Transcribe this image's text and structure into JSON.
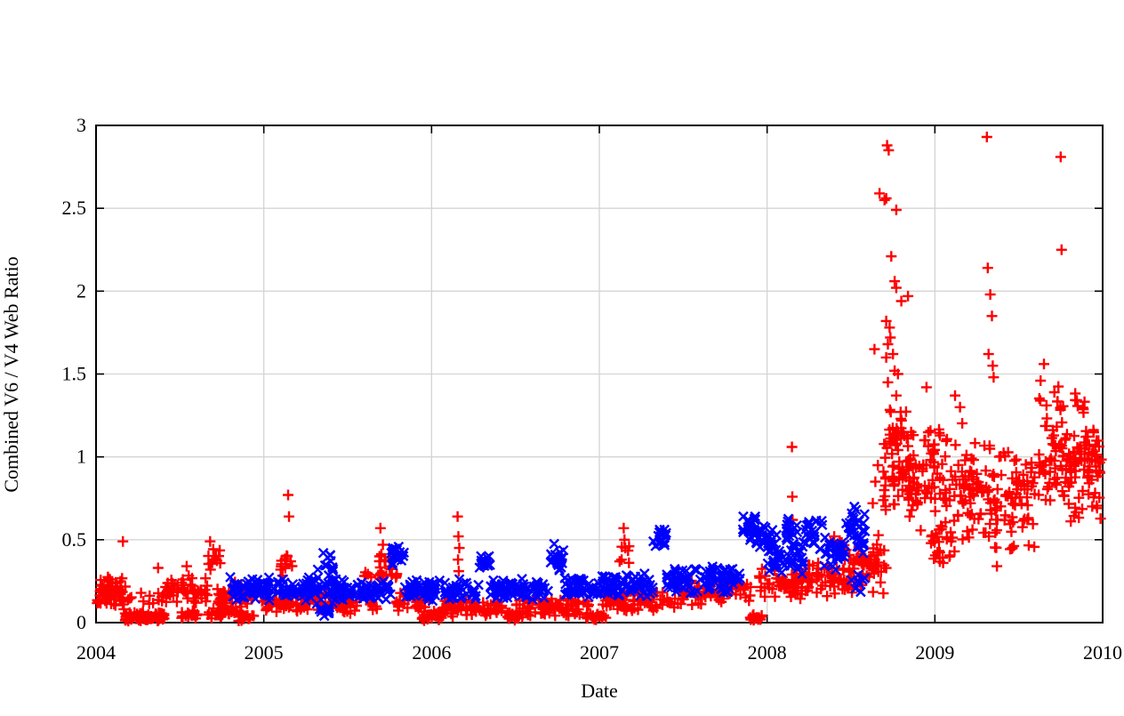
{
  "chart_data": {
    "type": "scatter",
    "title": "",
    "xlabel": "Date",
    "ylabel": "Combined V6 / V4 Web Ratio",
    "xlim": [
      2004,
      2010
    ],
    "ylim": [
      0,
      3
    ],
    "xticks": [
      2004,
      2005,
      2006,
      2007,
      2008,
      2009,
      2010
    ],
    "yticks": [
      0,
      0.5,
      1,
      1.5,
      2,
      2.5,
      3
    ],
    "grid": true,
    "legend": "none",
    "colors": {
      "red_series": "#ff0000",
      "blue_series": "#0000ff",
      "grid": "#d4d4d4",
      "axis": "#000000",
      "text": "#000000",
      "background": "#ffffff"
    },
    "_bands_note": "Dense daily scatter approximated as bands: [xStart, xEnd, count, yMin, yMax] in data units (year, ratio). 'points' are individually readable markers.",
    "series": [
      {
        "name": "red-plus",
        "marker": "plus",
        "color": "#ff0000",
        "bands": [
          [
            2004.005,
            2004.18,
            70,
            0.07,
            0.31
          ],
          [
            2004.17,
            2004.41,
            80,
            0.005,
            0.07
          ],
          [
            2004.18,
            2004.41,
            14,
            0.09,
            0.22
          ],
          [
            2004.41,
            2004.67,
            55,
            0.1,
            0.29
          ],
          [
            2004.49,
            2004.61,
            20,
            0.01,
            0.08
          ],
          [
            2004.66,
            2004.74,
            12,
            0.25,
            0.46
          ],
          [
            2004.66,
            2004.83,
            28,
            0.01,
            0.11
          ],
          [
            2004.72,
            2005.02,
            60,
            0.07,
            0.26
          ],
          [
            2004.84,
            2004.94,
            15,
            0.005,
            0.07
          ],
          [
            2005.0,
            2005.35,
            70,
            0.05,
            0.19
          ],
          [
            2005.1,
            2005.17,
            10,
            0.28,
            0.43
          ],
          [
            2005.35,
            2005.68,
            60,
            0.05,
            0.2
          ],
          [
            2005.6,
            2005.8,
            16,
            0.25,
            0.33
          ],
          [
            2005.68,
            2005.78,
            10,
            0.3,
            0.45
          ],
          [
            2005.78,
            2005.97,
            35,
            0.05,
            0.19
          ],
          [
            2005.94,
            2006.06,
            28,
            0.005,
            0.075
          ],
          [
            2006.05,
            2006.46,
            80,
            0.03,
            0.15
          ],
          [
            2006.44,
            2006.56,
            22,
            0.005,
            0.07
          ],
          [
            2006.5,
            2006.94,
            85,
            0.03,
            0.16
          ],
          [
            2006.92,
            2007.04,
            22,
            0.005,
            0.07
          ],
          [
            2007.02,
            2007.5,
            90,
            0.06,
            0.21
          ],
          [
            2007.12,
            2007.18,
            6,
            0.35,
            0.5
          ],
          [
            2007.5,
            2007.91,
            75,
            0.1,
            0.27
          ],
          [
            2007.89,
            2007.97,
            16,
            0.005,
            0.06
          ],
          [
            2007.95,
            2008.22,
            55,
            0.13,
            0.34
          ],
          [
            2008.2,
            2008.46,
            55,
            0.15,
            0.38
          ],
          [
            2008.36,
            2008.52,
            10,
            0.42,
            0.55
          ],
          [
            2008.45,
            2008.64,
            45,
            0.14,
            0.48
          ],
          [
            2008.6,
            2008.71,
            28,
            0.17,
            0.55
          ],
          [
            2008.69,
            2008.86,
            60,
            0.55,
            1.3
          ],
          [
            2008.72,
            2008.82,
            18,
            1.0,
            1.32
          ],
          [
            2008.84,
            2009.02,
            55,
            0.55,
            1.25
          ],
          [
            2008.97,
            2009.12,
            25,
            0.3,
            0.62
          ],
          [
            2009.02,
            2009.21,
            55,
            0.45,
            1.25
          ],
          [
            2009.2,
            2009.4,
            60,
            0.45,
            1.15
          ],
          [
            2009.4,
            2009.62,
            55,
            0.52,
            1.1
          ],
          [
            2009.35,
            2009.62,
            8,
            0.41,
            0.5
          ],
          [
            2009.62,
            2009.8,
            60,
            0.62,
            1.28
          ],
          [
            2009.62,
            2009.77,
            10,
            1.25,
            1.47
          ],
          [
            2009.8,
            2009.995,
            75,
            0.73,
            1.22
          ],
          [
            2009.8,
            2009.995,
            10,
            0.6,
            0.73
          ],
          [
            2009.83,
            2009.91,
            8,
            1.22,
            1.4
          ]
        ],
        "points": [
          [
            2004.16,
            0.49
          ],
          [
            2004.37,
            0.33
          ],
          [
            2004.54,
            0.34
          ],
          [
            2004.68,
            0.49
          ],
          [
            2005.145,
            0.77
          ],
          [
            2005.15,
            0.64
          ],
          [
            2005.14,
            0.4
          ],
          [
            2005.16,
            0.37
          ],
          [
            2005.695,
            0.57
          ],
          [
            2005.71,
            0.47
          ],
          [
            2006.155,
            0.64
          ],
          [
            2006.16,
            0.52
          ],
          [
            2006.165,
            0.45
          ],
          [
            2006.158,
            0.38
          ],
          [
            2006.162,
            0.31
          ],
          [
            2007.145,
            0.57
          ],
          [
            2007.15,
            0.5
          ],
          [
            2007.155,
            0.45
          ],
          [
            2008.148,
            1.06
          ],
          [
            2008.15,
            0.76
          ],
          [
            2008.152,
            0.62
          ],
          [
            2008.4,
            0.52
          ],
          [
            2008.44,
            0.48
          ],
          [
            2008.63,
            0.72
          ],
          [
            2008.645,
            0.85
          ],
          [
            2008.66,
            0.95
          ],
          [
            2008.64,
            1.65
          ],
          [
            2008.67,
            2.59
          ],
          [
            2008.7,
            2.55
          ],
          [
            2008.71,
            2.56
          ],
          [
            2008.715,
            2.88
          ],
          [
            2008.725,
            2.85
          ],
          [
            2008.77,
            2.49
          ],
          [
            2008.74,
            2.21
          ],
          [
            2008.76,
            2.06
          ],
          [
            2008.77,
            2.02
          ],
          [
            2008.8,
            1.94
          ],
          [
            2008.84,
            1.97
          ],
          [
            2008.71,
            1.82
          ],
          [
            2008.73,
            1.78
          ],
          [
            2008.735,
            1.72
          ],
          [
            2008.72,
            1.68
          ],
          [
            2008.75,
            1.62
          ],
          [
            2008.71,
            1.6
          ],
          [
            2008.76,
            1.52
          ],
          [
            2008.78,
            1.5
          ],
          [
            2008.72,
            1.45
          ],
          [
            2008.77,
            1.37
          ],
          [
            2008.95,
            1.42
          ],
          [
            2009.12,
            1.37
          ],
          [
            2009.15,
            1.3
          ],
          [
            2009.31,
            2.93
          ],
          [
            2009.315,
            2.14
          ],
          [
            2009.33,
            1.98
          ],
          [
            2009.34,
            1.85
          ],
          [
            2009.32,
            1.62
          ],
          [
            2009.345,
            1.55
          ],
          [
            2009.35,
            1.48
          ],
          [
            2009.37,
            0.34
          ],
          [
            2009.65,
            1.56
          ],
          [
            2009.63,
            1.46
          ],
          [
            2009.75,
            2.81
          ],
          [
            2009.755,
            2.25
          ]
        ]
      },
      {
        "name": "blue-cross",
        "marker": "cross",
        "color": "#0000ff",
        "bands": [
          [
            2004.8,
            2005.3,
            120,
            0.13,
            0.28
          ],
          [
            2005.3,
            2005.42,
            40,
            0.05,
            0.45
          ],
          [
            2005.33,
            2005.4,
            8,
            0.02,
            0.1
          ],
          [
            2005.42,
            2005.76,
            80,
            0.12,
            0.27
          ],
          [
            2005.76,
            2005.84,
            20,
            0.3,
            0.48
          ],
          [
            2005.84,
            2006.28,
            95,
            0.12,
            0.27
          ],
          [
            2006.28,
            2006.35,
            16,
            0.32,
            0.43
          ],
          [
            2006.35,
            2006.71,
            80,
            0.13,
            0.28
          ],
          [
            2006.71,
            2006.79,
            20,
            0.3,
            0.48
          ],
          [
            2006.79,
            2007.32,
            115,
            0.14,
            0.3
          ],
          [
            2007.32,
            2007.4,
            18,
            0.44,
            0.58
          ],
          [
            2007.4,
            2007.84,
            95,
            0.17,
            0.36
          ],
          [
            2007.84,
            2007.93,
            24,
            0.48,
            0.68
          ],
          [
            2007.93,
            2008.06,
            30,
            0.42,
            0.6
          ],
          [
            2008.0,
            2008.23,
            48,
            0.28,
            0.5
          ],
          [
            2008.11,
            2008.19,
            14,
            0.5,
            0.63
          ],
          [
            2008.23,
            2008.34,
            22,
            0.42,
            0.65
          ],
          [
            2008.34,
            2008.47,
            30,
            0.3,
            0.52
          ],
          [
            2008.47,
            2008.585,
            32,
            0.4,
            0.72
          ],
          [
            2008.5,
            2008.585,
            8,
            0.18,
            0.32
          ]
        ],
        "points": [
          [
            2005.355,
            0.42
          ],
          [
            2005.36,
            0.04
          ],
          [
            2008.52,
            0.7
          ],
          [
            2008.53,
            0.68
          ]
        ]
      }
    ]
  }
}
